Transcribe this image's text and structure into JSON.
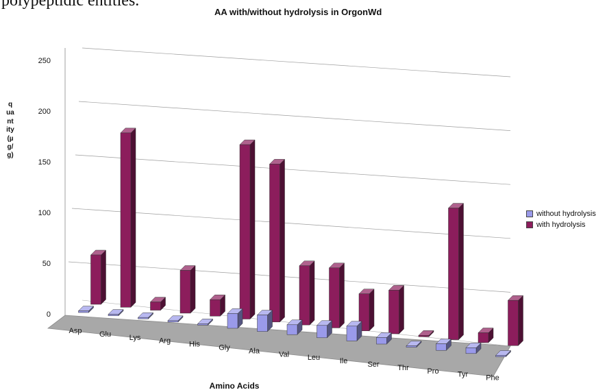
{
  "page": {
    "fragment_text": "polypeptidic entities."
  },
  "chart_data": {
    "type": "bar",
    "title": "AA with/without hydrolysis in OrgonWd",
    "xlabel": "Amino Acids",
    "ylabel": "quantity (µg/g)",
    "ylim": [
      0,
      250
    ],
    "yticks": [
      0,
      50,
      100,
      150,
      200,
      250
    ],
    "grid": true,
    "legend_position": "right",
    "categories": [
      "Asp",
      "Glu",
      "Lys",
      "Arg",
      "His",
      "Gly",
      "Ala",
      "Val",
      "Leu",
      "Ile",
      "Ser",
      "Thr",
      "Pro",
      "Tyr",
      "Phe"
    ],
    "series": [
      {
        "name": "without hydrolysis",
        "color": "#9a9aea",
        "values": [
          2,
          1,
          0,
          0,
          0,
          18,
          20,
          12,
          15,
          18,
          8,
          0,
          8,
          7,
          0
        ]
      },
      {
        "name": "with hydrolysis",
        "color": "#8c1d5c",
        "values": [
          60,
          212,
          10,
          52,
          20,
          212,
          192,
          72,
          73,
          45,
          53,
          0,
          160,
          12,
          55
        ]
      }
    ]
  }
}
